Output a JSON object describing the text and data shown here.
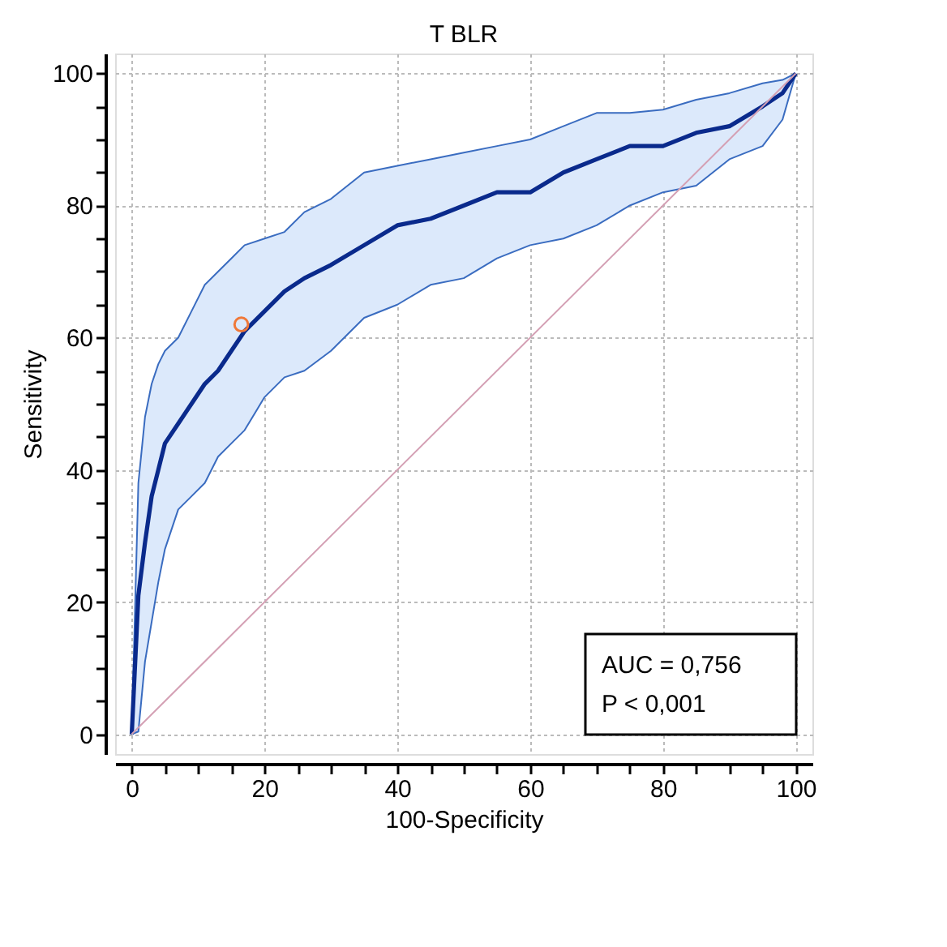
{
  "chart_data": {
    "type": "line",
    "title": "T BLR",
    "xlabel": "100-Specificity",
    "ylabel": "Sensitivity",
    "xlim": [
      -2.5,
      102.5
    ],
    "ylim": [
      -3,
      103
    ],
    "xticks": [
      0,
      {
        "value": 5,
        "label": null
      },
      {
        "value": 10,
        "label": null
      },
      {
        "value": 15,
        "label": null
      },
      20,
      {
        "value": 25,
        "label": null
      },
      {
        "value": 30,
        "label": null
      },
      {
        "value": 35,
        "label": null
      },
      40,
      {
        "value": 45,
        "label": null
      },
      {
        "value": 50,
        "label": null
      },
      {
        "value": 55,
        "label": null
      },
      60,
      {
        "value": 65,
        "label": null
      },
      {
        "value": 70,
        "label": null
      },
      {
        "value": 75,
        "label": null
      },
      80,
      {
        "value": 85,
        "label": null
      },
      {
        "value": 90,
        "label": null
      },
      {
        "value": 95,
        "label": null
      },
      100
    ],
    "yticks": [
      0,
      {
        "value": 5,
        "label": null
      },
      {
        "value": 10,
        "label": null
      },
      {
        "value": 15,
        "label": null
      },
      20,
      {
        "value": 25,
        "label": null
      },
      {
        "value": 30,
        "label": null
      },
      {
        "value": 35,
        "label": null
      },
      40,
      {
        "value": 45,
        "label": null
      },
      {
        "value": 50,
        "label": null
      },
      {
        "value": 55,
        "label": null
      },
      60,
      {
        "value": 65,
        "label": null
      },
      {
        "value": 70,
        "label": null
      },
      {
        "value": 75,
        "label": null
      },
      80,
      {
        "value": 85,
        "label": null
      },
      {
        "value": 90,
        "label": null
      },
      {
        "value": 95,
        "label": null
      },
      100
    ],
    "grid": true,
    "line_style": "solid",
    "annotations": [
      "AUC = 0,756",
      "P < 0,001"
    ],
    "series": [
      {
        "type": "line",
        "color": "#0a2a8c",
        "x": [
          0,
          1,
          2,
          3,
          4,
          5,
          7,
          9,
          11,
          13,
          15,
          17,
          20,
          23,
          26,
          30,
          35,
          40,
          45,
          50,
          55,
          60,
          65,
          70,
          75,
          80,
          85,
          90,
          95,
          98,
          100
        ],
        "values": [
          0,
          21,
          29,
          36,
          40,
          44,
          47,
          50,
          53,
          55,
          58,
          61,
          64,
          67,
          69,
          71,
          74,
          77,
          78,
          80,
          82,
          82,
          85,
          87,
          89,
          89,
          91,
          92,
          95,
          97,
          100
        ],
        "lower": [
          0,
          0.4,
          11,
          17,
          23,
          28,
          34,
          36,
          38,
          42,
          44,
          46,
          51,
          54,
          55,
          58,
          63,
          65,
          68,
          69,
          72,
          74,
          75,
          77,
          80,
          82,
          83,
          87,
          89,
          93,
          100
        ],
        "upper": [
          0,
          38,
          48,
          53,
          56,
          58,
          60,
          64,
          68,
          70,
          72,
          74,
          75,
          76,
          79,
          81,
          85,
          86,
          87,
          88,
          89,
          90,
          92,
          94,
          94,
          94.5,
          96,
          97,
          98.5,
          99,
          100
        ]
      },
      {
        "type": "line",
        "color": "#d4a0b4",
        "x": [
          0,
          100
        ],
        "values": [
          0,
          100
        ]
      },
      {
        "type": "scatter",
        "color": "#f07838",
        "marker": "circle",
        "x": [
          16.5
        ],
        "values": [
          62
        ]
      }
    ]
  }
}
